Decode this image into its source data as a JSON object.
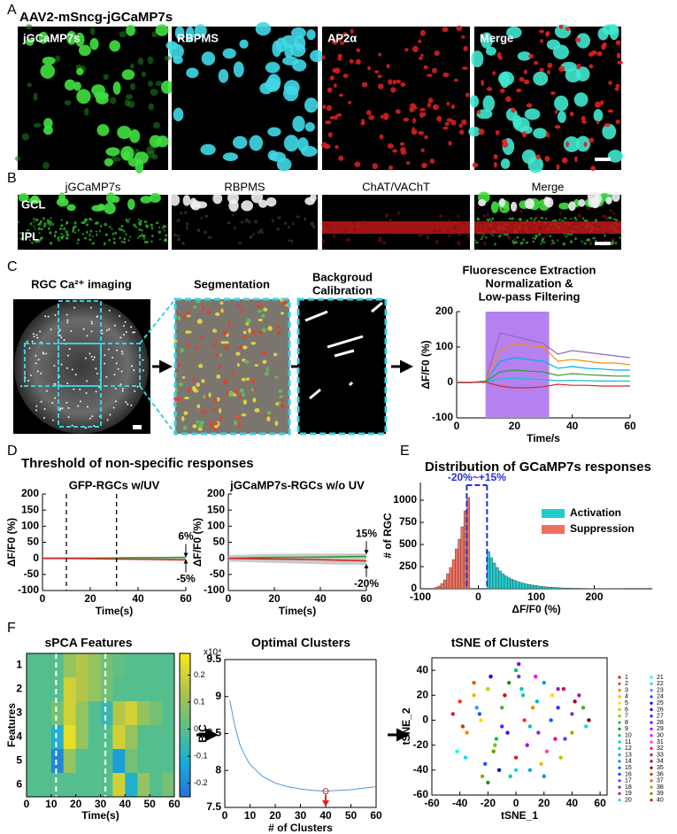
{
  "panel_a": {
    "label": "A",
    "title": "AAV2-mSncg-jGCaMP7s",
    "images": [
      "jGCaMP7s",
      "RBPMS",
      "AP2α",
      "Merge"
    ]
  },
  "panel_b": {
    "label": "B",
    "images": [
      "jGCaMP7s",
      "RBPMS",
      "ChAT/VAChT",
      "Merge"
    ],
    "layers": [
      "GCL",
      "IPL"
    ]
  },
  "panel_c": {
    "label": "C",
    "steps": [
      [
        "RGC Ca²⁺ imaging"
      ],
      [
        "Segmentation"
      ],
      [
        "Backgroud",
        "Calibration"
      ],
      [
        "Fluorescence Extraction",
        "Normalization &",
        "Low-pass Filtering"
      ]
    ],
    "chart": {
      "type": "line",
      "xlabel": "Time/s",
      "ylabel": "ΔF/F0 (%)",
      "xlim": [
        0,
        60
      ],
      "ylim": [
        -100,
        200
      ],
      "xticks": [
        0,
        20,
        40,
        60
      ],
      "yticks": [
        -100,
        0,
        100,
        200
      ],
      "stimulus": [
        10,
        32
      ],
      "stimulus_color": "#b580f0",
      "x": [
        0,
        5,
        10,
        15,
        20,
        25,
        30,
        35,
        40,
        45,
        50,
        55,
        60
      ],
      "series": [
        {
          "color": "#9467bd",
          "values": [
            0,
            0,
            4,
            140,
            130,
            120,
            110,
            80,
            90,
            85,
            80,
            75,
            70
          ]
        },
        {
          "color": "#ff8c00",
          "values": [
            0,
            0,
            5,
            90,
            110,
            105,
            100,
            60,
            65,
            60,
            55,
            55,
            50
          ]
        },
        {
          "color": "#00b0f0",
          "values": [
            0,
            0,
            3,
            60,
            70,
            65,
            60,
            40,
            45,
            40,
            38,
            35,
            35
          ]
        },
        {
          "color": "#2ca02c",
          "values": [
            0,
            0,
            2,
            30,
            35,
            32,
            30,
            20,
            25,
            22,
            20,
            18,
            18
          ]
        },
        {
          "color": "#17becf",
          "values": [
            0,
            0,
            1,
            10,
            12,
            10,
            8,
            5,
            6,
            5,
            4,
            4,
            4
          ]
        },
        {
          "color": "#d62728",
          "values": [
            0,
            0,
            1,
            -10,
            -15,
            -15,
            -12,
            -5,
            -8,
            -8,
            -10,
            -10,
            -10
          ]
        }
      ]
    }
  },
  "panel_d": {
    "label": "D",
    "title": "Threshold of non-specific responses",
    "plots": [
      {
        "type": "line",
        "subtitle": "GFP-RGCs w/UV",
        "xlabel": "Time(s)",
        "ylabel": "ΔF/F0 (%)",
        "xlim": [
          0,
          60
        ],
        "ylim": [
          -100,
          200
        ],
        "xticks": [
          0,
          20,
          40,
          60
        ],
        "yticks": [
          -100,
          -50,
          0,
          50,
          100,
          150,
          200
        ],
        "stimulus": [
          10,
          31
        ],
        "x": [
          0,
          10,
          20,
          30,
          40,
          50,
          60
        ],
        "band": {
          "color": "#bbbbbb",
          "upper": [
            3,
            3,
            4,
            4,
            5,
            5,
            6
          ],
          "lower": [
            -3,
            -3,
            -3,
            -4,
            -4,
            -5,
            -5
          ]
        },
        "series": [
          {
            "color": "#2ca02c",
            "values": [
              0,
              1,
              0,
              1,
              2,
              2,
              3
            ]
          },
          {
            "color": "#d62728",
            "values": [
              0,
              0,
              -1,
              -2,
              -3,
              -4,
              -5
            ]
          }
        ],
        "thresholds": [
          {
            "value": 6,
            "label": "6%"
          },
          {
            "value": -5,
            "label": "-5%"
          }
        ]
      },
      {
        "type": "line",
        "subtitle": "jGCaMP7s-RGCs w/o UV",
        "xlabel": "Time(s)",
        "ylabel": "ΔF/F0 (%)",
        "xlim": [
          0,
          60
        ],
        "ylim": [
          -100,
          200
        ],
        "xticks": [
          0,
          20,
          40,
          60
        ],
        "yticks": [
          -100,
          -50,
          0,
          50,
          100,
          150,
          200
        ],
        "x": [
          0,
          10,
          20,
          30,
          40,
          50,
          60
        ],
        "band": {
          "color": "#bbbbbb",
          "upper": [
            10,
            12,
            14,
            15,
            15,
            15,
            15
          ],
          "lower": [
            -10,
            -12,
            -14,
            -16,
            -18,
            -20,
            -20
          ]
        },
        "series": [
          {
            "color": "#2ca02c",
            "values": [
              0,
              2,
              3,
              3,
              4,
              5,
              6
            ]
          },
          {
            "color": "#d62728",
            "values": [
              0,
              -1,
              -2,
              -3,
              -4,
              -6,
              -8
            ]
          }
        ],
        "thresholds": [
          {
            "value": 15,
            "label": "15%"
          },
          {
            "value": -20,
            "label": "-20%"
          }
        ]
      }
    ]
  },
  "panel_e": {
    "label": "E",
    "title": "Distribution of GCaMP7s responses",
    "type": "histogram",
    "xlabel": "ΔF/F0 (%)",
    "ylabel": "# of RGC",
    "xlim": [
      -100,
      300
    ],
    "ylim": [
      0,
      1200
    ],
    "xticks": [
      -100,
      0,
      100,
      200
    ],
    "yticks": [
      0,
      250,
      500,
      750,
      1000
    ],
    "thresholds": [
      -20,
      15
    ],
    "threshold_label": "-20%~+15%",
    "threshold_color": "#2233dd",
    "series": [
      {
        "name": "Activation",
        "color": "#22cccc",
        "bins": [
          15,
          20,
          25,
          30,
          35,
          40,
          45,
          50,
          55,
          60,
          65,
          70,
          75,
          80,
          85,
          90,
          95,
          100,
          105,
          110,
          115,
          120,
          125,
          130,
          135,
          140,
          145,
          150,
          155,
          160,
          165,
          170,
          175,
          180,
          185,
          190,
          195,
          200,
          205,
          210,
          215,
          220,
          225,
          230,
          235,
          240,
          245,
          250
        ],
        "counts": [
          420,
          350,
          290,
          240,
          200,
          170,
          145,
          125,
          108,
          95,
          82,
          72,
          63,
          55,
          48,
          42,
          37,
          32,
          28,
          24,
          21,
          18,
          16,
          14,
          12,
          10,
          9,
          8,
          7,
          6,
          5,
          5,
          4,
          4,
          3,
          3,
          2,
          2,
          2,
          2,
          1,
          1,
          1,
          1,
          1,
          1,
          1
        ]
      },
      {
        "name": "Suppression",
        "color": "#f07060",
        "bins": [
          -80,
          -75,
          -70,
          -65,
          -60,
          -55,
          -50,
          -45,
          -40,
          -35,
          -30,
          -25,
          -20,
          -15
        ],
        "counts": [
          5,
          15,
          30,
          60,
          100,
          170,
          240,
          330,
          450,
          560,
          700,
          880,
          1030
        ]
      }
    ]
  },
  "panel_f": {
    "label": "F",
    "heatmap": {
      "type": "heatmap",
      "title": "sPCA Features",
      "xlabel": "Time(s)",
      "ylabel": "Features",
      "xlim": [
        0,
        60
      ],
      "xticks": [
        0,
        10,
        20,
        30,
        40,
        50,
        60
      ],
      "rows": [
        1,
        2,
        3,
        4,
        5,
        6
      ],
      "markers": [
        12,
        32
      ],
      "colormap": [
        "#2a6fd6",
        "#18aed8",
        "#5dc084",
        "#b4c44a",
        "#f9e61b"
      ],
      "clim": [
        -0.25,
        0.28
      ],
      "cticks": [
        -0.2,
        -0.1,
        0,
        0.1,
        0.2
      ],
      "values": [
        [
          0,
          0,
          0,
          0.1,
          0.15,
          0.1,
          0.05,
          0.02,
          0,
          0,
          0,
          0
        ],
        [
          0,
          0,
          0,
          0.2,
          0.15,
          0.1,
          0.05,
          0,
          0,
          0,
          0,
          0
        ],
        [
          0,
          0,
          0.05,
          0.2,
          0.1,
          0,
          -0.05,
          0.15,
          0.2,
          0.1,
          0.05,
          0
        ],
        [
          0,
          0,
          -0.1,
          0.25,
          0.1,
          0,
          0,
          0.2,
          0.1,
          0,
          0,
          0
        ],
        [
          0,
          0,
          -0.2,
          0.1,
          0,
          0,
          0,
          -0.15,
          0.05,
          0,
          0,
          0
        ],
        [
          0,
          0,
          0,
          0,
          0,
          0,
          0,
          0.2,
          -0.1,
          0.1,
          0,
          0.05
        ]
      ]
    },
    "bic": {
      "type": "line",
      "title": "Optimal Clusters",
      "xlabel": "# of Clusters",
      "ylabel": "BIC",
      "multiplier": "x10⁴",
      "color": "#4a9be0",
      "xlim": [
        0,
        60
      ],
      "ylim": [
        7.5,
        9.5
      ],
      "xticks": [
        0,
        10,
        20,
        30,
        40,
        50,
        60
      ],
      "yticks": [
        7.5,
        8,
        8.5,
        9,
        9.5
      ],
      "x": [
        2,
        4,
        6,
        8,
        10,
        15,
        20,
        25,
        30,
        35,
        40,
        45,
        50,
        55,
        60
      ],
      "values": [
        8.95,
        8.6,
        8.35,
        8.2,
        8.08,
        7.92,
        7.83,
        7.78,
        7.75,
        7.73,
        7.72,
        7.73,
        7.74,
        7.76,
        7.78
      ],
      "optimal": 40,
      "optimal_color": "#e02020"
    },
    "tsne": {
      "type": "scatter",
      "title": "tSNE of Clusters",
      "xlabel": "tSNE_1",
      "ylabel": "tSNE_2",
      "xlim": [
        -60,
        65
      ],
      "ylim": [
        -60,
        50
      ],
      "xticks": [
        -60,
        -40,
        -20,
        0,
        20,
        40,
        60
      ],
      "yticks": [
        -60,
        -40,
        -20,
        0,
        20,
        40
      ],
      "clusters": [
        "1",
        "2",
        "3",
        "4",
        "5",
        "6",
        "7",
        "8",
        "9",
        "10",
        "11",
        "12",
        "13",
        "14",
        "15",
        "16",
        "17",
        "18",
        "19",
        "20",
        "21",
        "22",
        "23",
        "24",
        "25",
        "26",
        "27",
        "28",
        "29",
        "30",
        "31",
        "32",
        "33",
        "34",
        "35",
        "36",
        "37",
        "38",
        "39",
        "40"
      ],
      "colors": [
        "#e41a1c",
        "#ff3030",
        "#ff7f00",
        "#ffb000",
        "#ffd700",
        "#c8c800",
        "#80c000",
        "#40b040",
        "#00a000",
        "#00c060",
        "#00d090",
        "#00c0c0",
        "#00b0e0",
        "#0090ff",
        "#0060ff",
        "#3030ff",
        "#6040e0",
        "#8030c0",
        "#a020a0",
        "#00e0e0",
        "#00ffff",
        "#20d0ff",
        "#4090ff",
        "#2050ff",
        "#0000ff",
        "#0000c0",
        "#4000ff",
        "#8000ff",
        "#b000ff",
        "#ff00ff",
        "#ff40c0",
        "#ff0080",
        "#d00060",
        "#a00040",
        "#800000",
        "#c04000",
        "#e06000",
        "#a0a000",
        "#60a000",
        "#e00000"
      ],
      "x": [
        -45,
        -40,
        -35,
        -30,
        -25,
        -20,
        -15,
        -10,
        -5,
        0,
        5,
        10,
        15,
        20,
        25,
        30,
        35,
        40,
        45,
        50,
        -42,
        -36,
        -28,
        -22,
        -18,
        -12,
        -6,
        2,
        8,
        14,
        22,
        28,
        34,
        42,
        52,
        -38,
        -30,
        -24,
        -16,
        -8,
        0,
        6,
        12,
        18,
        26,
        32,
        40,
        48,
        -20,
        -14,
        -4,
        4,
        10,
        20,
        -26,
        -10,
        2,
        16,
        30,
        0
      ],
      "y": [
        5,
        15,
        -10,
        20,
        0,
        25,
        -20,
        10,
        30,
        40,
        20,
        -5,
        15,
        30,
        0,
        10,
        -15,
        5,
        20,
        -5,
        -25,
        -30,
        10,
        -35,
        35,
        -40,
        -10,
        45,
        -20,
        35,
        -25,
        -15,
        25,
        15,
        0,
        -5,
        30,
        -45,
        -25,
        20,
        -30,
        0,
        10,
        -35,
        20,
        -30,
        -10,
        10,
        -50,
        -15,
        -45,
        25,
        -40,
        -45,
        5,
        -5,
        35,
        -10,
        25,
        -40
      ],
      "cluster": [
        1,
        2,
        3,
        4,
        5,
        6,
        7,
        8,
        9,
        10,
        11,
        12,
        13,
        14,
        15,
        16,
        17,
        18,
        19,
        20,
        21,
        22,
        23,
        24,
        25,
        26,
        27,
        28,
        29,
        30,
        31,
        32,
        33,
        34,
        35,
        36,
        37,
        38,
        39,
        40,
        1,
        2,
        3,
        4,
        5,
        6,
        7,
        8,
        9,
        10,
        11,
        12,
        13,
        14,
        15,
        16,
        17,
        18,
        19,
        20
      ]
    }
  }
}
